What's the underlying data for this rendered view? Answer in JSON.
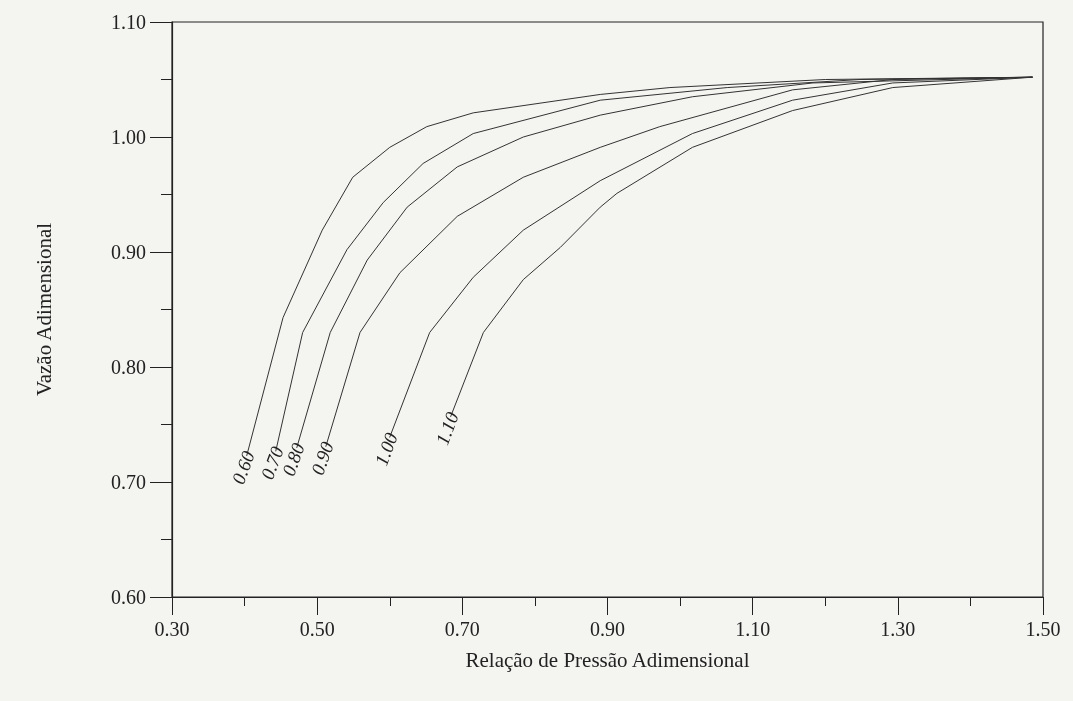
{
  "chart_data": {
    "type": "line",
    "xlabel": "Relação de Pressão Adimensional",
    "ylabel": "Vazão Adimensional",
    "xlim": [
      0.3,
      1.5
    ],
    "ylim": [
      0.6,
      1.1
    ],
    "xticks": [
      {
        "value": 0.3,
        "label": "0.30"
      },
      {
        "value": 0.4,
        "label": null
      },
      {
        "value": 0.5,
        "label": "0.50"
      },
      {
        "value": 0.6,
        "label": null
      },
      {
        "value": 0.7,
        "label": "0.70"
      },
      {
        "value": 0.8,
        "label": null
      },
      {
        "value": 0.9,
        "label": "0.90"
      },
      {
        "value": 1.0,
        "label": null
      },
      {
        "value": 1.1,
        "label": "1.10"
      },
      {
        "value": 1.2,
        "label": null
      },
      {
        "value": 1.3,
        "label": "1.30"
      },
      {
        "value": 1.4,
        "label": null
      },
      {
        "value": 1.5,
        "label": "1.50"
      }
    ],
    "yticks": [
      {
        "value": 0.6,
        "label": "0.60"
      },
      {
        "value": 0.65,
        "label": null
      },
      {
        "value": 0.7,
        "label": "0.70"
      },
      {
        "value": 0.75,
        "label": null
      },
      {
        "value": 0.8,
        "label": "0.80"
      },
      {
        "value": 0.85,
        "label": null
      },
      {
        "value": 0.9,
        "label": "0.90"
      },
      {
        "value": 0.95,
        "label": null
      },
      {
        "value": 1.0,
        "label": "1.00"
      },
      {
        "value": 1.05,
        "label": null
      },
      {
        "value": 1.1,
        "label": "1.10"
      }
    ],
    "grid": false,
    "legend": false,
    "marker": "none",
    "line_style": "solid",
    "series": [
      {
        "name": "0.60",
        "color": "#333333",
        "x": [
          0.403,
          0.453,
          0.507,
          0.549,
          0.6,
          0.651,
          0.715,
          0.89,
          0.986,
          1.2,
          1.485
        ],
        "values": [
          0.723,
          0.843,
          0.919,
          0.965,
          0.991,
          1.009,
          1.021,
          1.037,
          1.043,
          1.05,
          1.052
        ]
      },
      {
        "name": "0.70",
        "color": "#333333",
        "x": [
          0.443,
          0.48,
          0.541,
          0.591,
          0.646,
          0.715,
          0.89,
          1.065,
          1.248,
          1.485
        ],
        "values": [
          0.727,
          0.83,
          0.902,
          0.943,
          0.977,
          1.003,
          1.032,
          1.043,
          1.05,
          1.052
        ]
      },
      {
        "name": "0.80",
        "color": "#333333",
        "x": [
          0.472,
          0.518,
          0.569,
          0.624,
          0.693,
          0.784,
          0.89,
          1.017,
          1.183,
          1.485
        ],
        "values": [
          0.73,
          0.83,
          0.893,
          0.939,
          0.974,
          1.0,
          1.019,
          1.035,
          1.047,
          1.052
        ]
      },
      {
        "name": "0.90",
        "color": "#333333",
        "x": [
          0.512,
          0.559,
          0.614,
          0.693,
          0.784,
          0.89,
          0.972,
          1.155,
          1.293,
          1.485
        ],
        "values": [
          0.731,
          0.83,
          0.882,
          0.931,
          0.965,
          0.991,
          1.009,
          1.041,
          1.05,
          1.052
        ]
      },
      {
        "name": "1.00",
        "color": "#333333",
        "x": [
          0.6,
          0.655,
          0.715,
          0.784,
          0.89,
          1.017,
          1.155,
          1.293,
          1.485
        ],
        "values": [
          0.739,
          0.83,
          0.878,
          0.919,
          0.962,
          1.003,
          1.032,
          1.047,
          1.052
        ]
      },
      {
        "name": "1.10",
        "color": "#333333",
        "x": [
          0.684,
          0.729,
          0.784,
          0.835,
          0.89,
          0.913,
          1.017,
          1.155,
          1.293,
          1.485
        ],
        "values": [
          0.757,
          0.83,
          0.876,
          0.904,
          0.939,
          0.951,
          0.991,
          1.023,
          1.043,
          1.052
        ]
      }
    ]
  }
}
